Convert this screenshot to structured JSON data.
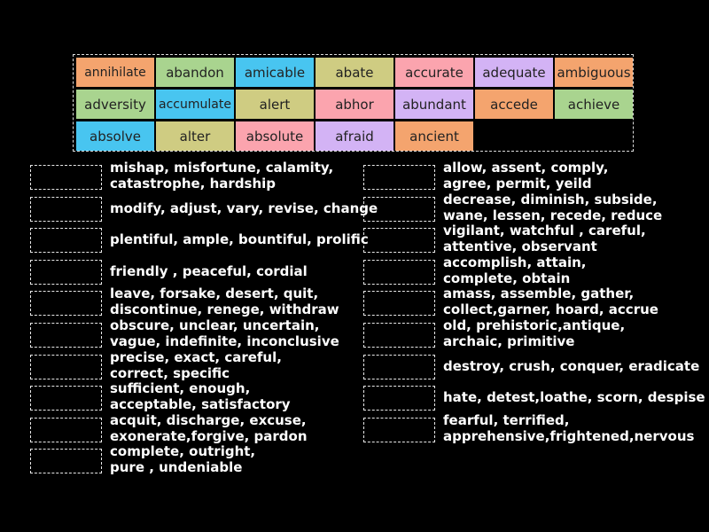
{
  "word_bank": {
    "tiles": [
      {
        "label": "annihilate",
        "color": "#f4a46e"
      },
      {
        "label": "abandon",
        "color": "#a9d48f"
      },
      {
        "label": "amicable",
        "color": "#48c5f0"
      },
      {
        "label": "abate",
        "color": "#cfcc82"
      },
      {
        "label": "accurate",
        "color": "#fba4ae"
      },
      {
        "label": "adequate",
        "color": "#d3b3f5"
      },
      {
        "label": "ambiguous",
        "color": "#f4a46e"
      },
      {
        "label": "adversity",
        "color": "#a9d48f"
      },
      {
        "label": "accumulate",
        "color": "#48c5f0"
      },
      {
        "label": "alert",
        "color": "#cfcc82"
      },
      {
        "label": "abhor",
        "color": "#fba4ae"
      },
      {
        "label": "abundant",
        "color": "#d3b3f5"
      },
      {
        "label": "accede",
        "color": "#f4a46e"
      },
      {
        "label": "achieve",
        "color": "#a9d48f"
      },
      {
        "label": "absolve",
        "color": "#48c5f0"
      },
      {
        "label": "alter",
        "color": "#cfcc82"
      },
      {
        "label": "absolute",
        "color": "#fba4ae"
      },
      {
        "label": "afraid",
        "color": "#d3b3f5"
      },
      {
        "label": "ancient",
        "color": "#f4a46e"
      }
    ]
  },
  "left_column": [
    {
      "line1": "mishap, misfortune, calamity,",
      "line2": "catastrophe, hardship"
    },
    {
      "line1": "modify, adjust, vary, revise, change",
      "line2": ""
    },
    {
      "line1": "plentiful, ample, bountiful, prolific",
      "line2": ""
    },
    {
      "line1": "friendly , peaceful, cordial",
      "line2": ""
    },
    {
      "line1": "leave, forsake, desert, quit,",
      "line2": "discontinue, renege, withdraw"
    },
    {
      "line1": "obscure, unclear, uncertain,",
      "line2": "vague, indefinite, inconclusive"
    },
    {
      "line1": "precise, exact, careful,",
      "line2": "correct, specific"
    },
    {
      "line1": "sufficient, enough,",
      "line2": "acceptable, satisfactory"
    },
    {
      "line1": "acquit, discharge, excuse,",
      "line2": "exonerate,forgive, pardon"
    },
    {
      "line1": "complete, outright,",
      "line2": "pure , undeniable"
    }
  ],
  "right_column": [
    {
      "line1": "allow, assent, comply,",
      "line2": "agree, permit, yeild"
    },
    {
      "line1": "decrease, diminish, subside,",
      "line2": "wane, lessen, recede, reduce"
    },
    {
      "line1": "vigilant, watchful , careful,",
      "line2": "attentive, observant"
    },
    {
      "line1": "accomplish, attain,",
      "line2": "complete, obtain"
    },
    {
      "line1": "amass, assemble, gather,",
      "line2": "collect,garner, hoard, accrue"
    },
    {
      "line1": "old, prehistoric,antique,",
      "line2": "archaic, primitive"
    },
    {
      "line1": "destroy, crush, conquer, eradicate",
      "line2": ""
    },
    {
      "line1": "hate, detest,loathe, scorn, despise",
      "line2": ""
    },
    {
      "line1": "fearful, terrified,",
      "line2": "apprehensive,frightened,nervous"
    }
  ]
}
